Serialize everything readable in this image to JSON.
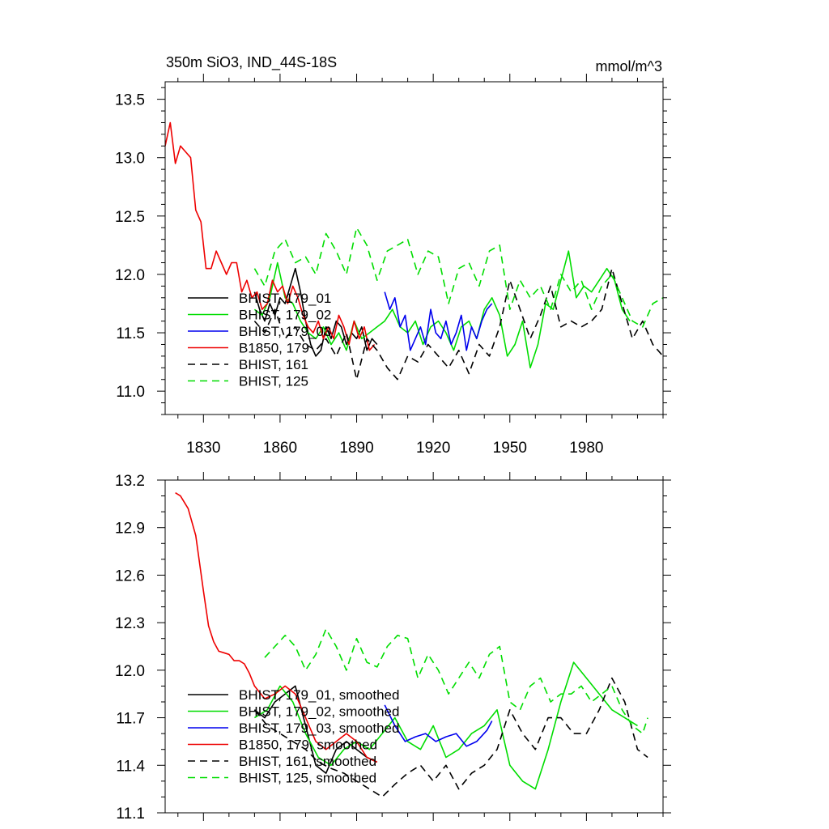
{
  "chart_data": [
    {
      "type": "line",
      "title": "350m SiO3, IND_44S-18S",
      "units": "mmol/m^3",
      "xlim": [
        1815,
        2010
      ],
      "ylim": [
        10.8,
        13.65
      ],
      "xticks": [
        1830,
        1860,
        1890,
        1920,
        1950,
        1980
      ],
      "xtick_labels": [
        "1830",
        "1860",
        "1890",
        "1920",
        "1950",
        "1980"
      ],
      "yticks": [
        11.0,
        11.5,
        12.0,
        12.5,
        13.0,
        13.5
      ],
      "ytick_labels": [
        "11.0",
        "11.5",
        "12.0",
        "12.5",
        "13.0",
        "13.5"
      ],
      "grid": false,
      "legend_placement": "lower-left",
      "series": [
        {
          "name": "BHIST, 179_01",
          "color": "#000000",
          "dash": "solid",
          "x": [
            1850,
            1852,
            1854,
            1856,
            1858,
            1860,
            1862,
            1864,
            1866,
            1868,
            1870,
            1872,
            1874,
            1876,
            1878,
            1880,
            1882,
            1884,
            1886,
            1888,
            1890,
            1892,
            1894,
            1896,
            1898
          ],
          "y": [
            11.85,
            11.7,
            11.6,
            11.75,
            11.65,
            11.8,
            11.75,
            11.9,
            12.05,
            11.85,
            11.6,
            11.4,
            11.3,
            11.35,
            11.55,
            11.45,
            11.6,
            11.55,
            11.4,
            11.5,
            11.45,
            11.55,
            11.35,
            11.45,
            11.4
          ]
        },
        {
          "name": "BHIST, 179_02",
          "color": "#00dd00",
          "dash": "solid",
          "x": [
            1850,
            1853,
            1856,
            1859,
            1862,
            1865,
            1868,
            1871,
            1874,
            1877,
            1880,
            1883,
            1886,
            1889,
            1892,
            1895,
            1898,
            1901,
            1904,
            1907,
            1910,
            1913,
            1916,
            1919,
            1922,
            1925,
            1928,
            1931,
            1934,
            1937,
            1940,
            1943,
            1946,
            1949,
            1952,
            1955,
            1958,
            1961,
            1964,
            1967,
            1970,
            1973,
            1976,
            1979,
            1982,
            1985,
            1988,
            1991,
            1994,
            1997
          ],
          "y": [
            11.7,
            11.65,
            11.8,
            12.1,
            11.8,
            11.75,
            11.6,
            11.5,
            11.45,
            11.55,
            11.4,
            11.5,
            11.35,
            11.6,
            11.45,
            11.5,
            11.55,
            11.6,
            11.7,
            11.55,
            11.5,
            11.6,
            11.4,
            11.55,
            11.6,
            11.5,
            11.35,
            11.55,
            11.6,
            11.45,
            11.7,
            11.8,
            11.65,
            11.3,
            11.4,
            11.6,
            11.2,
            11.4,
            11.75,
            11.7,
            11.95,
            12.2,
            11.8,
            11.9,
            11.85,
            11.95,
            12.05,
            11.95,
            11.7,
            11.6
          ]
        },
        {
          "name": "BHIST, 179_03",
          "color": "#0000ee",
          "dash": "solid",
          "x": [
            1901,
            1903,
            1905,
            1907,
            1909,
            1911,
            1913,
            1915,
            1917,
            1919,
            1921,
            1923,
            1925,
            1927,
            1929,
            1931,
            1933,
            1935,
            1937,
            1939,
            1941,
            1943
          ],
          "y": [
            11.85,
            11.7,
            11.8,
            11.55,
            11.65,
            11.35,
            11.45,
            11.55,
            11.4,
            11.7,
            11.5,
            11.45,
            11.6,
            11.4,
            11.5,
            11.65,
            11.35,
            11.55,
            11.45,
            11.6,
            11.7,
            11.75
          ]
        },
        {
          "name": "B1850, 179",
          "color": "#ee0000",
          "dash": "solid",
          "x": [
            1815,
            1817,
            1819,
            1821,
            1823,
            1825,
            1827,
            1829,
            1831,
            1833,
            1835,
            1837,
            1839,
            1841,
            1843,
            1845,
            1847,
            1849,
            1851,
            1853,
            1855,
            1857,
            1859,
            1861,
            1863,
            1865,
            1867,
            1869,
            1871,
            1873,
            1875,
            1877,
            1879,
            1881,
            1883,
            1885,
            1887,
            1889,
            1891,
            1893,
            1895,
            1897
          ],
          "y": [
            13.1,
            13.3,
            12.95,
            13.1,
            13.05,
            13.0,
            12.55,
            12.45,
            12.05,
            12.05,
            12.2,
            12.1,
            12.0,
            12.1,
            12.1,
            11.85,
            11.95,
            11.8,
            11.85,
            11.7,
            11.75,
            11.95,
            11.85,
            11.9,
            11.75,
            11.9,
            11.8,
            11.65,
            11.55,
            11.5,
            11.6,
            11.45,
            11.55,
            11.45,
            11.65,
            11.55,
            11.4,
            11.6,
            11.45,
            11.55,
            11.35,
            11.4
          ]
        },
        {
          "name": "BHIST, 161",
          "color": "#000000",
          "dash": "dashed",
          "x": [
            1850,
            1854,
            1858,
            1862,
            1866,
            1870,
            1874,
            1878,
            1882,
            1886,
            1890,
            1894,
            1898,
            1902,
            1906,
            1910,
            1914,
            1918,
            1922,
            1926,
            1930,
            1934,
            1938,
            1942,
            1946,
            1950,
            1954,
            1958,
            1962,
            1966,
            1970,
            1974,
            1978,
            1982,
            1986,
            1990,
            1994,
            1998,
            2002,
            2006,
            2010
          ],
          "y": [
            11.6,
            11.5,
            11.7,
            11.45,
            11.55,
            11.4,
            11.35,
            11.45,
            11.3,
            11.5,
            11.1,
            11.45,
            11.35,
            11.2,
            11.1,
            11.3,
            11.25,
            11.4,
            11.3,
            11.2,
            11.35,
            11.15,
            11.4,
            11.3,
            11.55,
            11.95,
            11.7,
            11.45,
            11.65,
            11.9,
            11.55,
            11.6,
            11.55,
            11.6,
            11.7,
            12.05,
            11.75,
            11.45,
            11.6,
            11.4,
            11.3
          ]
        },
        {
          "name": "BHIST, 125",
          "color": "#00dd00",
          "dash": "dashed",
          "x": [
            1850,
            1854,
            1858,
            1862,
            1866,
            1870,
            1874,
            1878,
            1882,
            1886,
            1890,
            1894,
            1898,
            1902,
            1906,
            1910,
            1914,
            1918,
            1922,
            1926,
            1930,
            1934,
            1938,
            1942,
            1946,
            1950,
            1954,
            1958,
            1962,
            1966,
            1970,
            1974,
            1978,
            1982,
            1986,
            1990,
            1994,
            1998,
            2002,
            2006,
            2010
          ],
          "y": [
            12.05,
            11.9,
            12.2,
            12.3,
            12.1,
            12.15,
            12.0,
            12.35,
            12.2,
            12.0,
            12.4,
            12.25,
            11.95,
            12.2,
            12.25,
            12.3,
            12.0,
            12.2,
            12.15,
            11.75,
            12.05,
            12.1,
            11.9,
            12.2,
            12.25,
            11.7,
            11.95,
            11.8,
            11.9,
            11.7,
            12.0,
            11.85,
            11.95,
            11.7,
            11.9,
            12.0,
            11.8,
            11.6,
            11.55,
            11.75,
            11.8
          ]
        }
      ]
    },
    {
      "type": "line",
      "xlim": [
        1815,
        2010
      ],
      "ylim": [
        11.1,
        13.2
      ],
      "xticks": [
        1830,
        1860,
        1890,
        1920,
        1950,
        1980
      ],
      "yticks": [
        11.1,
        11.4,
        11.7,
        12.0,
        12.3,
        12.6,
        12.9,
        13.2
      ],
      "ytick_labels": [
        "11.1",
        "11.4",
        "11.7",
        "12.0",
        "12.3",
        "12.6",
        "12.9",
        "13.2"
      ],
      "grid": false,
      "legend_placement": "lower-left",
      "series": [
        {
          "name": "BHIST, 179_01, smoothed",
          "color": "#000000",
          "dash": "solid",
          "x": [
            1850,
            1854,
            1858,
            1862,
            1866,
            1870,
            1874,
            1878,
            1882,
            1886,
            1890,
            1894,
            1898
          ],
          "y": [
            11.75,
            11.7,
            11.8,
            11.85,
            11.9,
            11.65,
            11.4,
            11.35,
            11.5,
            11.55,
            11.5,
            11.45,
            11.42
          ]
        },
        {
          "name": "BHIST, 179_02, smoothed",
          "color": "#00dd00",
          "dash": "solid",
          "x": [
            1850,
            1855,
            1860,
            1865,
            1870,
            1875,
            1880,
            1885,
            1890,
            1895,
            1900,
            1905,
            1910,
            1915,
            1920,
            1925,
            1930,
            1935,
            1940,
            1945,
            1950,
            1955,
            1960,
            1965,
            1970,
            1975,
            1980,
            1985,
            1990,
            1995,
            2000
          ],
          "y": [
            11.7,
            11.75,
            11.9,
            11.8,
            11.6,
            11.45,
            11.4,
            11.5,
            11.55,
            11.5,
            11.6,
            11.7,
            11.55,
            11.5,
            11.65,
            11.45,
            11.5,
            11.6,
            11.65,
            11.75,
            11.4,
            11.3,
            11.25,
            11.5,
            11.8,
            12.05,
            11.95,
            11.85,
            11.75,
            11.7,
            11.65
          ]
        },
        {
          "name": "BHIST, 179_03, smoothed",
          "color": "#0000ee",
          "dash": "solid",
          "x": [
            1901,
            1905,
            1909,
            1913,
            1917,
            1921,
            1925,
            1929,
            1933,
            1937,
            1941,
            1943
          ],
          "y": [
            11.78,
            11.65,
            11.55,
            11.58,
            11.6,
            11.55,
            11.58,
            11.6,
            11.52,
            11.55,
            11.62,
            11.68
          ]
        },
        {
          "name": "B1850, 179, smoothed",
          "color": "#ee0000",
          "dash": "solid",
          "x": [
            1819,
            1821,
            1824,
            1827,
            1830,
            1832,
            1834,
            1836,
            1838,
            1840,
            1842,
            1844,
            1846,
            1848,
            1850,
            1854,
            1858,
            1862,
            1866,
            1870,
            1874,
            1878,
            1882,
            1886,
            1890,
            1894,
            1898
          ],
          "y": [
            13.12,
            13.1,
            13.02,
            12.85,
            12.5,
            12.28,
            12.18,
            12.12,
            12.11,
            12.1,
            12.06,
            12.06,
            12.04,
            11.98,
            11.9,
            11.82,
            11.85,
            11.9,
            11.85,
            11.7,
            11.55,
            11.5,
            11.55,
            11.6,
            11.55,
            11.45,
            11.42
          ]
        },
        {
          "name": "BHIST, 161, smoothed",
          "color": "#000000",
          "dash": "dashed",
          "x": [
            1850,
            1855,
            1860,
            1865,
            1870,
            1875,
            1880,
            1885,
            1890,
            1895,
            1900,
            1905,
            1910,
            1915,
            1920,
            1925,
            1930,
            1935,
            1940,
            1945,
            1950,
            1955,
            1960,
            1965,
            1970,
            1975,
            1980,
            1985,
            1990,
            1995,
            2000,
            2004
          ],
          "y": [
            11.75,
            11.65,
            11.6,
            11.55,
            11.5,
            11.42,
            11.38,
            11.35,
            11.3,
            11.25,
            11.2,
            11.28,
            11.35,
            11.4,
            11.3,
            11.4,
            11.25,
            11.35,
            11.4,
            11.5,
            11.75,
            11.6,
            11.5,
            11.7,
            11.7,
            11.6,
            11.6,
            11.75,
            11.95,
            11.8,
            11.5,
            11.45
          ]
        },
        {
          "name": "BHIST, 125, smoothed",
          "color": "#00dd00",
          "dash": "dashed",
          "x": [
            1854,
            1858,
            1862,
            1866,
            1870,
            1874,
            1878,
            1882,
            1886,
            1890,
            1894,
            1898,
            1902,
            1906,
            1910,
            1914,
            1918,
            1922,
            1926,
            1930,
            1934,
            1938,
            1942,
            1946,
            1950,
            1954,
            1958,
            1962,
            1966,
            1970,
            1974,
            1978,
            1982,
            1986,
            1990,
            1994,
            1998,
            2002,
            2004
          ],
          "y": [
            12.08,
            12.15,
            12.22,
            12.15,
            12.0,
            12.1,
            12.26,
            12.15,
            12.0,
            12.2,
            12.05,
            12.02,
            12.15,
            12.22,
            12.2,
            11.95,
            12.1,
            12.0,
            11.85,
            11.95,
            12.05,
            11.95,
            12.1,
            12.15,
            11.8,
            11.75,
            11.9,
            11.95,
            11.8,
            11.85,
            11.85,
            11.9,
            11.8,
            11.85,
            11.9,
            11.75,
            11.65,
            11.6,
            11.7
          ]
        }
      ]
    }
  ]
}
